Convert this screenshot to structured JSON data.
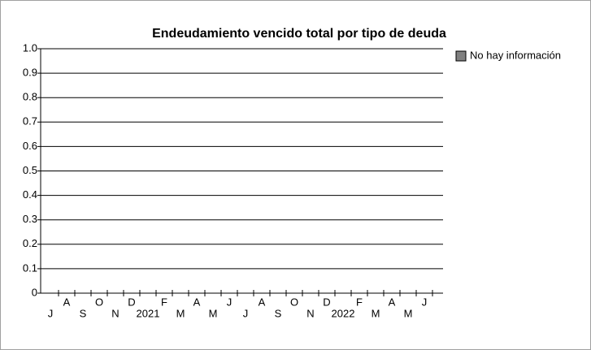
{
  "chart_data": {
    "type": "line",
    "title": "Endeudamiento vencido total por tipo de deuda",
    "categories": [
      "J",
      "A",
      "S",
      "O",
      "N",
      "D",
      "2021",
      "F",
      "M",
      "A",
      "M",
      "J",
      "J",
      "A",
      "S",
      "O",
      "N",
      "D",
      "2022",
      "F",
      "M",
      "A",
      "M",
      "J"
    ],
    "series": [
      {
        "name": "No hay información",
        "color": "#808080",
        "values": [
          null,
          null,
          null,
          null,
          null,
          null,
          null,
          null,
          null,
          null,
          null,
          null,
          null,
          null,
          null,
          null,
          null,
          null,
          null,
          null,
          null,
          null,
          null,
          null
        ]
      }
    ],
    "ylim": [
      0,
      1
    ],
    "yticks": [
      0,
      0.1,
      0.2,
      0.3,
      0.4,
      0.5,
      0.6,
      0.7,
      0.8,
      0.9,
      {
        "value": 1,
        "label": "1.0"
      }
    ],
    "grid": true,
    "legend": "right"
  }
}
